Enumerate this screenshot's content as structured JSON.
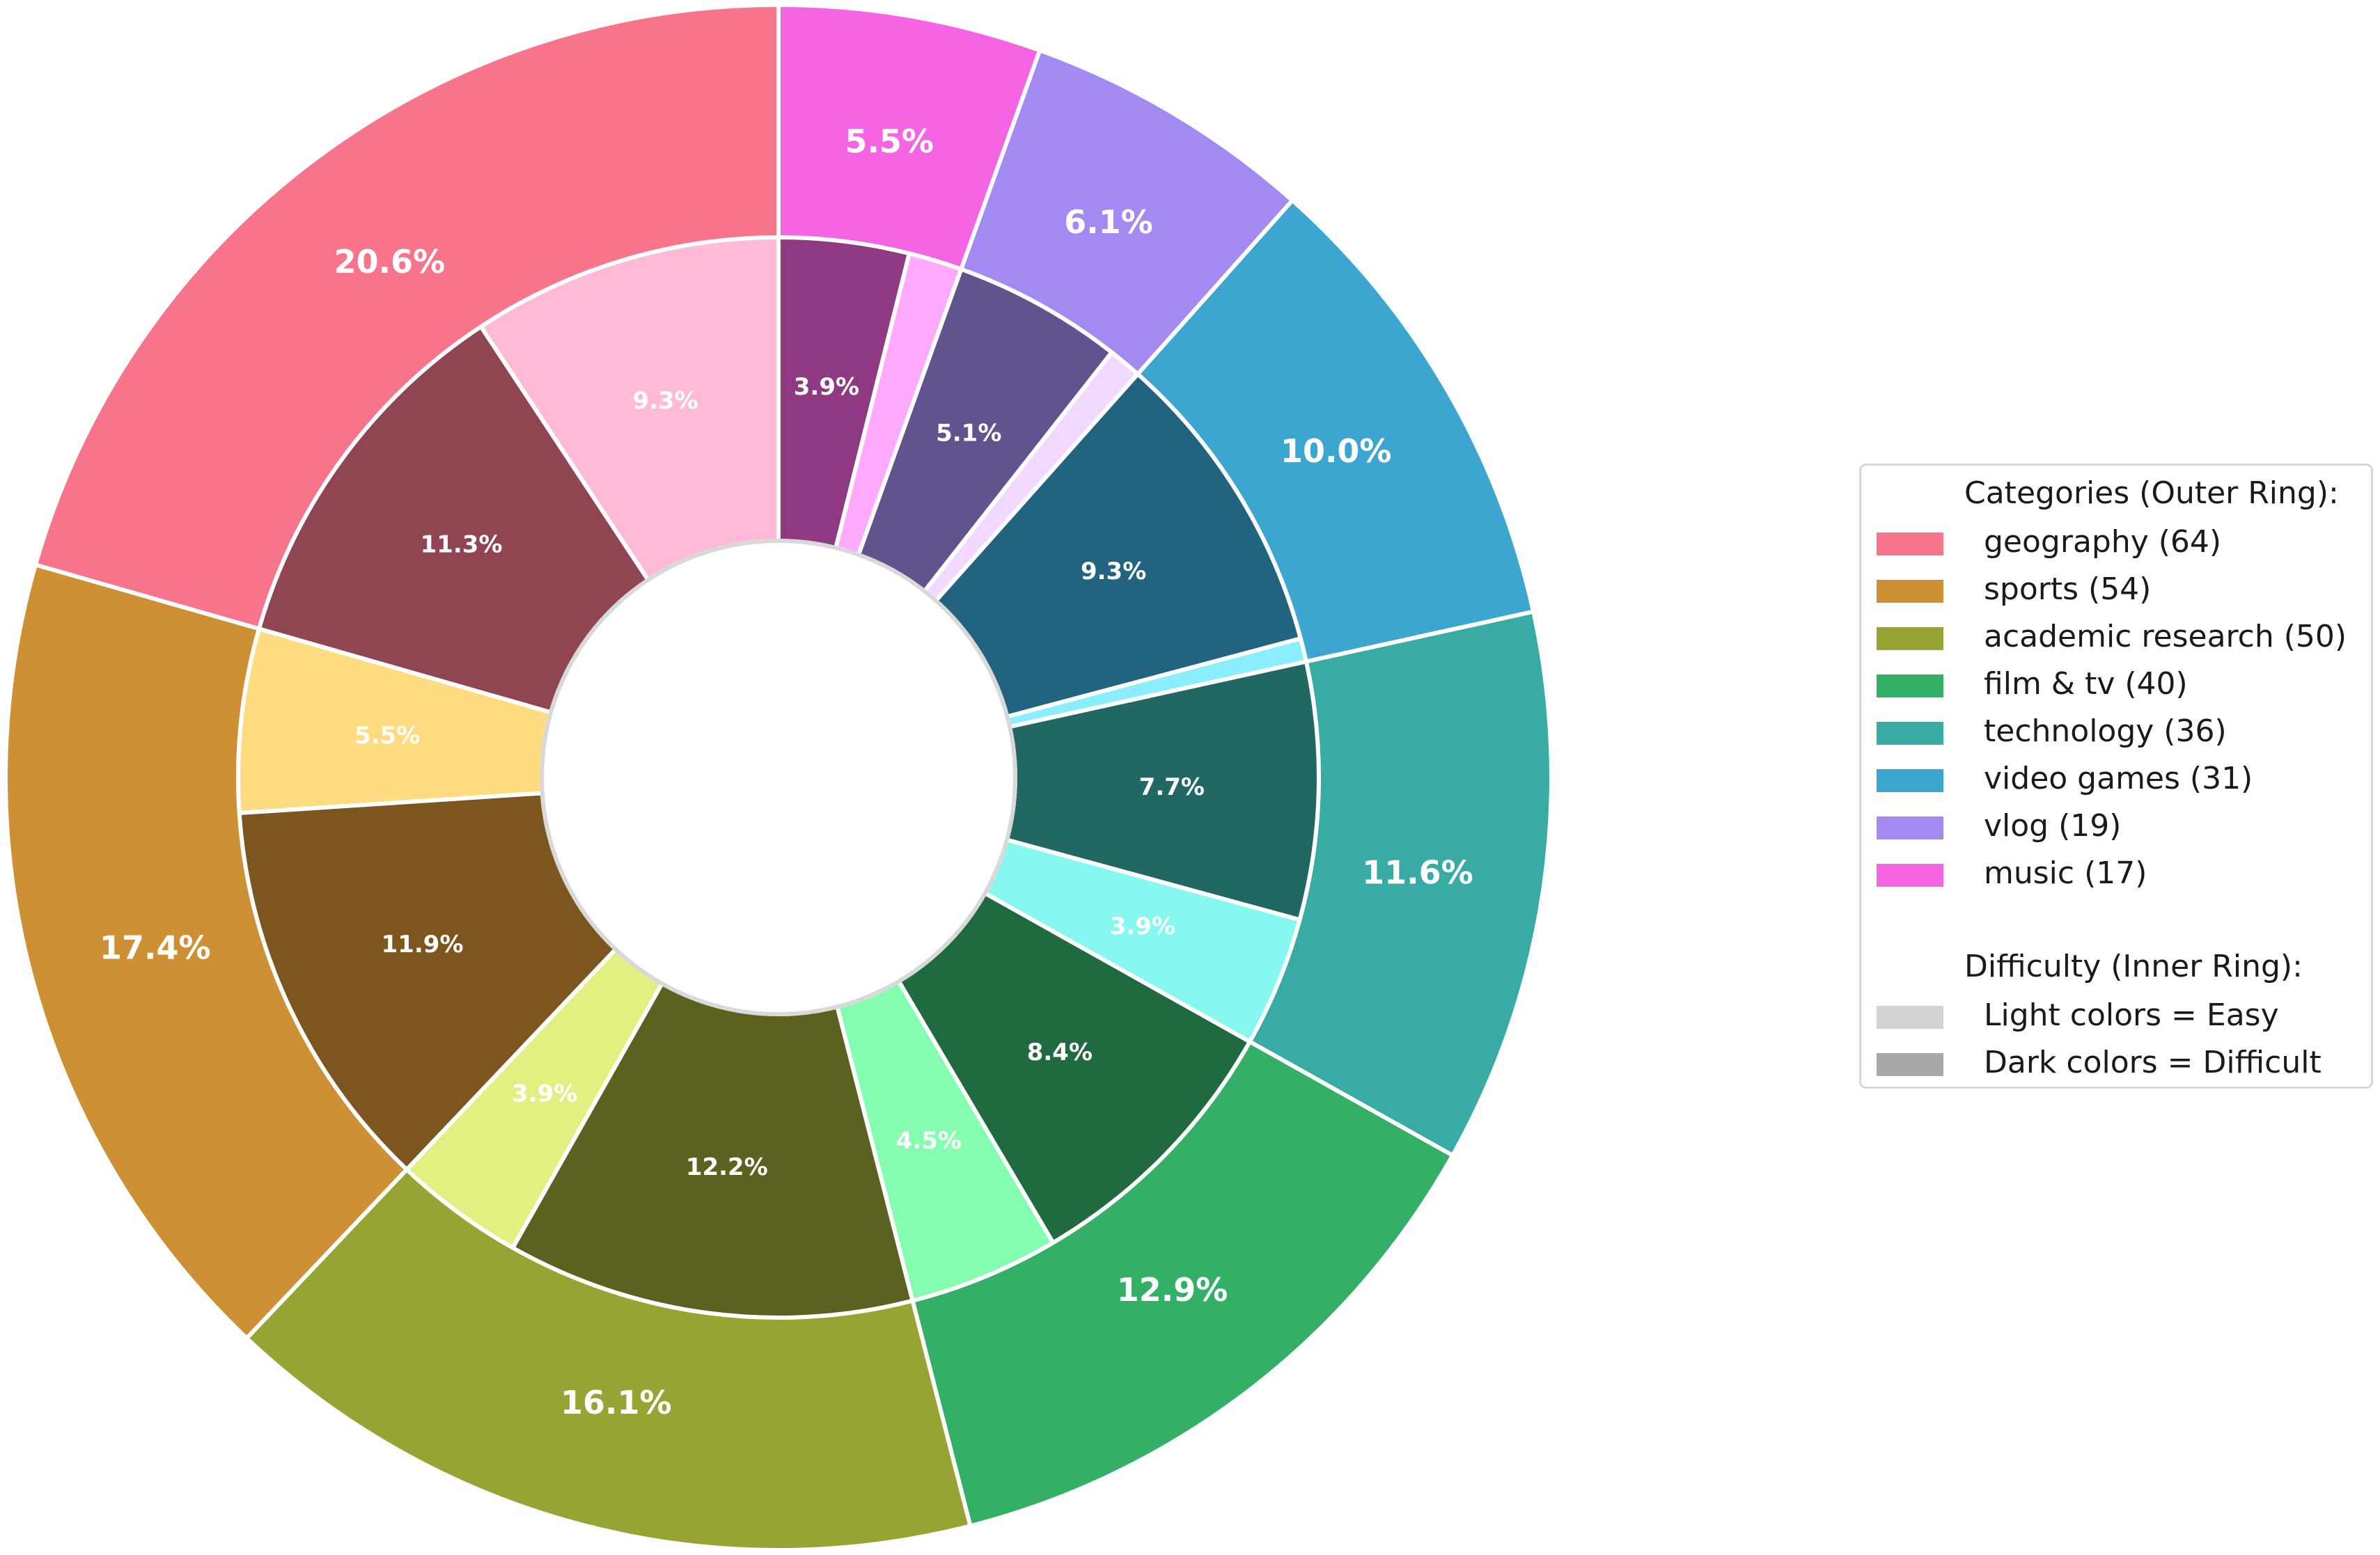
{
  "chart_data": {
    "type": "donut",
    "title": "",
    "outer_ring": {
      "legend_title": "Categories (Outer Ring):",
      "slices": [
        {
          "category": "music",
          "count": 17,
          "label": "5.5%",
          "percent": 5.5,
          "color": "#f564e3"
        },
        {
          "category": "vlog",
          "count": 19,
          "label": "6.1%",
          "percent": 6.1,
          "color": "#a38af3"
        },
        {
          "category": "video games",
          "count": 31,
          "label": "10.0%",
          "percent": 10.0,
          "color": "#3ca6d1"
        },
        {
          "category": "technology",
          "count": 36,
          "label": "11.6%",
          "percent": 11.6,
          "color": "#38aba5"
        },
        {
          "category": "film & tv",
          "count": 40,
          "label": "12.9%",
          "percent": 12.9,
          "color": "#33b066"
        },
        {
          "category": "academic research",
          "count": 50,
          "label": "16.1%",
          "percent": 16.1,
          "color": "#97a433"
        },
        {
          "category": "sports",
          "count": 54,
          "label": "17.4%",
          "percent": 17.4,
          "color": "#ce9034"
        },
        {
          "category": "geography",
          "count": 64,
          "label": "20.6%",
          "percent": 20.6,
          "color": "#f7748a"
        }
      ]
    },
    "inner_ring": {
      "legend_title": "Difficulty (Inner Ring):",
      "slices": [
        {
          "category": "music",
          "difficulty": "Difficult",
          "label": "3.9%",
          "percent": 3.9,
          "color": "#8f3982"
        },
        {
          "category": "music",
          "difficulty": "Easy",
          "label": "",
          "percent": 1.6,
          "color": "#ffaaff"
        },
        {
          "category": "vlog",
          "difficulty": "Difficult",
          "label": "5.1%",
          "percent": 5.1,
          "color": "#62538e"
        },
        {
          "category": "vlog",
          "difficulty": "Easy",
          "label": "",
          "percent": 1.0,
          "color": "#f1d9ff"
        },
        {
          "category": "video games",
          "difficulty": "Difficult",
          "label": "9.3%",
          "percent": 9.3,
          "color": "#22637f"
        },
        {
          "category": "video games",
          "difficulty": "Easy",
          "label": "",
          "percent": 0.7,
          "color": "#8aeeff"
        },
        {
          "category": "technology",
          "difficulty": "Difficult",
          "label": "7.7%",
          "percent": 7.7,
          "color": "#216864"
        },
        {
          "category": "technology",
          "difficulty": "Easy",
          "label": "3.9%",
          "percent": 3.9,
          "color": "#86f8f0"
        },
        {
          "category": "film & tv",
          "difficulty": "Difficult",
          "label": "8.4%",
          "percent": 8.4,
          "color": "#1f6a3e"
        },
        {
          "category": "film & tv",
          "difficulty": "Easy",
          "label": "4.5%",
          "percent": 4.5,
          "color": "#85fdb0"
        },
        {
          "category": "academic research",
          "difficulty": "Difficult",
          "label": "12.2%",
          "percent": 12.2,
          "color": "#5c611f"
        },
        {
          "category": "academic research",
          "difficulty": "Easy",
          "label": "3.9%",
          "percent": 3.9,
          "color": "#e3ef81"
        },
        {
          "category": "sports",
          "difficulty": "Difficult",
          "label": "11.9%",
          "percent": 11.9,
          "color": "#7c551f"
        },
        {
          "category": "sports",
          "difficulty": "Easy",
          "label": "5.5%",
          "percent": 5.5,
          "color": "#ffdb82"
        },
        {
          "category": "geography",
          "difficulty": "Difficult",
          "label": "11.3%",
          "percent": 11.3,
          "color": "#8f4652"
        },
        {
          "category": "geography",
          "difficulty": "Easy",
          "label": "9.3%",
          "percent": 9.3,
          "color": "#ffbad5"
        }
      ]
    },
    "legend": {
      "placement": "right",
      "categories_title": "Categories (Outer Ring):",
      "categories": [
        {
          "label": "geography (64)",
          "color": "#f7748a"
        },
        {
          "label": "sports (54)",
          "color": "#ce9034"
        },
        {
          "label": "academic research (50)",
          "color": "#97a433"
        },
        {
          "label": "film & tv (40)",
          "color": "#33b066"
        },
        {
          "label": "technology (36)",
          "color": "#38aba5"
        },
        {
          "label": "video games (31)",
          "color": "#3ca6d1"
        },
        {
          "label": "vlog (19)",
          "color": "#a38af3"
        },
        {
          "label": "music (17)",
          "color": "#f564e3"
        }
      ],
      "difficulty_title": "Difficulty (Inner Ring):",
      "difficulty": [
        {
          "label": "Light colors = Easy",
          "color": "#d3d3d3"
        },
        {
          "label": "Dark colors = Difficult",
          "color": "#a9a9a9"
        }
      ]
    }
  }
}
